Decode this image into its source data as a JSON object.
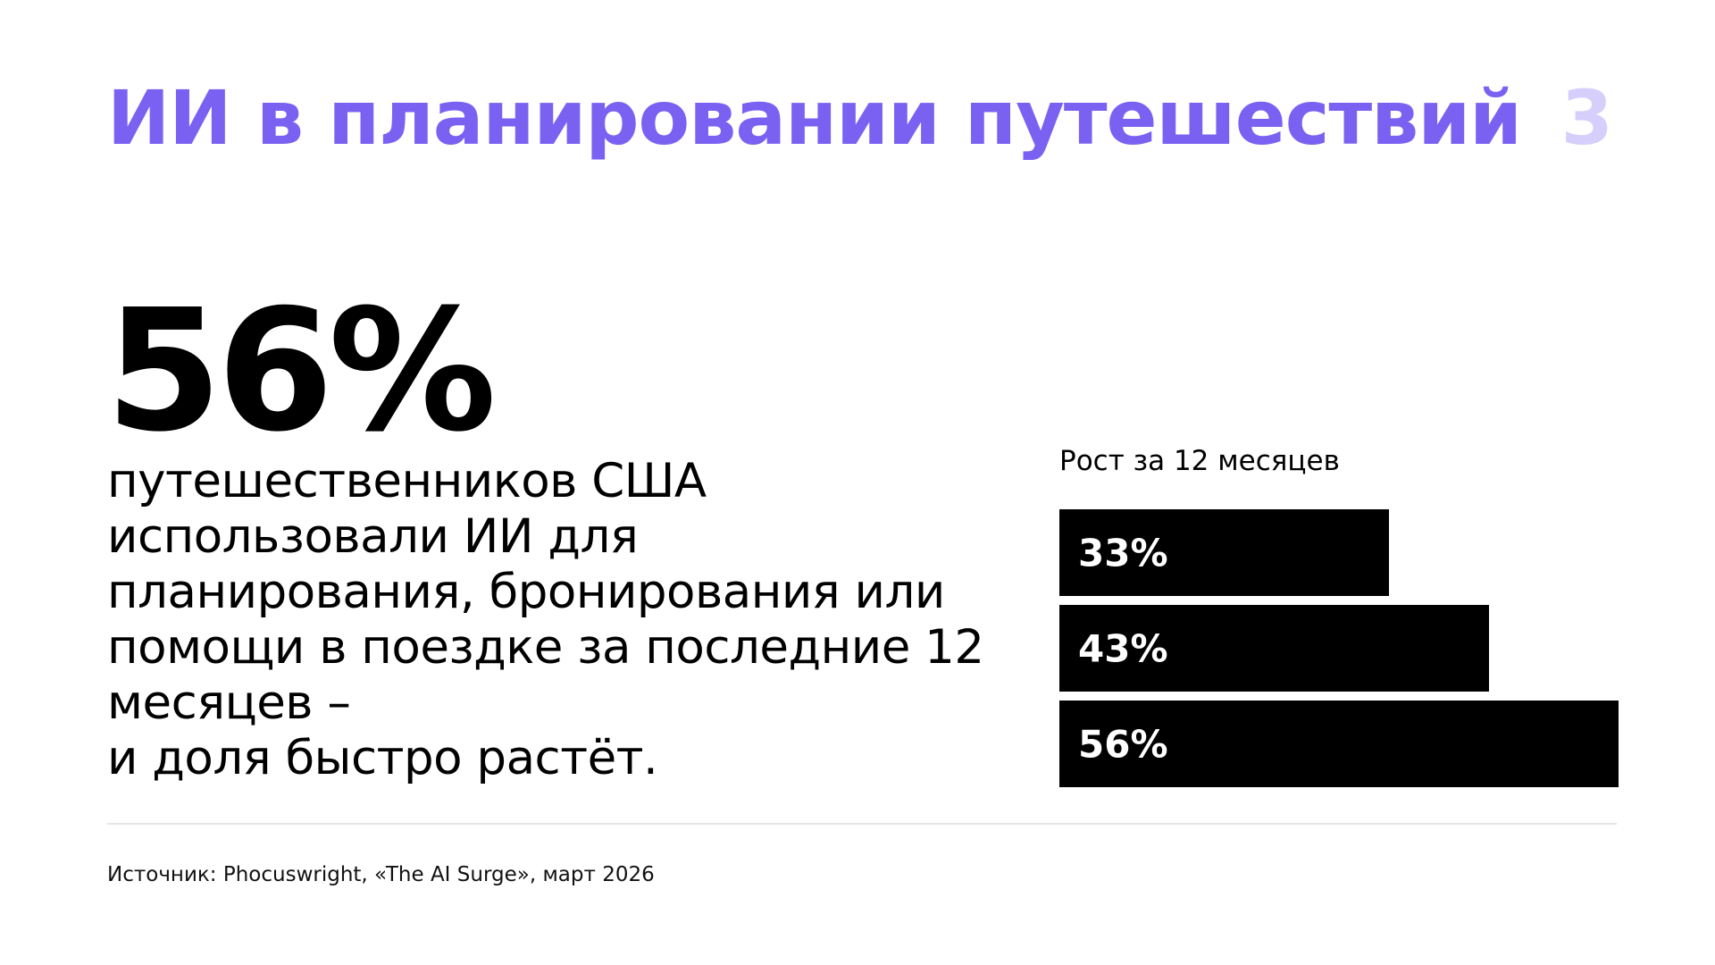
{
  "header": {
    "title": "ИИ в планировании путешествий",
    "page_number": "3"
  },
  "stat": {
    "value": "56%",
    "lines": [
      "путешественников США",
      "использовали ИИ для",
      "планирования, бронирования или",
      "помощи в поездке за последние 12",
      "месяцев –",
      "и доля быстро растёт."
    ]
  },
  "footer": {
    "source": "Источник: Phocuswright, «The AI Surge», март 2026"
  },
  "colors": {
    "accent": "#7B61F2",
    "accent_light": "#D6CFFB",
    "bar": "#000000",
    "bar_text": "#FFFFFF"
  },
  "chart_data": {
    "type": "bar",
    "orientation": "horizontal",
    "title": "Рост за 12 месяцев",
    "values": [
      33,
      43,
      56
    ],
    "data_labels": [
      "33%",
      "43%",
      "56%"
    ],
    "xlim": [
      0,
      56
    ],
    "grid": false,
    "legend": "none"
  }
}
